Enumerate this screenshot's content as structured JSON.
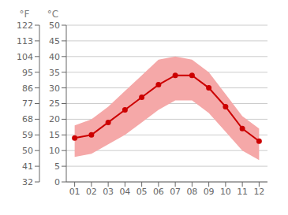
{
  "chart_data": {
    "type": "line",
    "x": [
      1,
      2,
      3,
      4,
      5,
      6,
      7,
      8,
      9,
      10,
      11,
      12
    ],
    "xlim": [
      0.5,
      12.5
    ],
    "xticks": [
      {
        "value": 1,
        "label": "01"
      },
      {
        "value": 2,
        "label": "02"
      },
      {
        "value": 3,
        "label": "03"
      },
      {
        "value": 4,
        "label": "04"
      },
      {
        "value": 5,
        "label": "05"
      },
      {
        "value": 6,
        "label": "06"
      },
      {
        "value": 7,
        "label": "07"
      },
      {
        "value": 8,
        "label": "08"
      },
      {
        "value": 9,
        "label": "09"
      },
      {
        "value": 10,
        "label": "10"
      },
      {
        "value": 11,
        "label": "11"
      },
      {
        "value": 12,
        "label": "12"
      }
    ],
    "ylim": [
      0,
      50
    ],
    "yticks": [
      0,
      5,
      10,
      15,
      20,
      25,
      30,
      35,
      40,
      45,
      50
    ],
    "ylabel": "°C",
    "y2lim": [
      32,
      122
    ],
    "y2ticks": [
      32,
      41,
      50,
      59,
      68,
      77,
      86,
      95,
      104,
      113,
      122
    ],
    "y2label": "°F",
    "grid": true,
    "series": [
      {
        "type": "area",
        "color": "#f5a8a8",
        "low": [
          8,
          9,
          12,
          15,
          19,
          23,
          26,
          26,
          22,
          16,
          10,
          7
        ],
        "high": [
          18,
          20,
          24,
          29,
          34,
          39,
          40,
          39,
          35,
          28,
          21,
          17
        ]
      },
      {
        "type": "line",
        "color": "#cc0000",
        "marker": "circle",
        "values": [
          14,
          15,
          19,
          23,
          27,
          31,
          34,
          34,
          30,
          24,
          17,
          13
        ]
      }
    ]
  }
}
